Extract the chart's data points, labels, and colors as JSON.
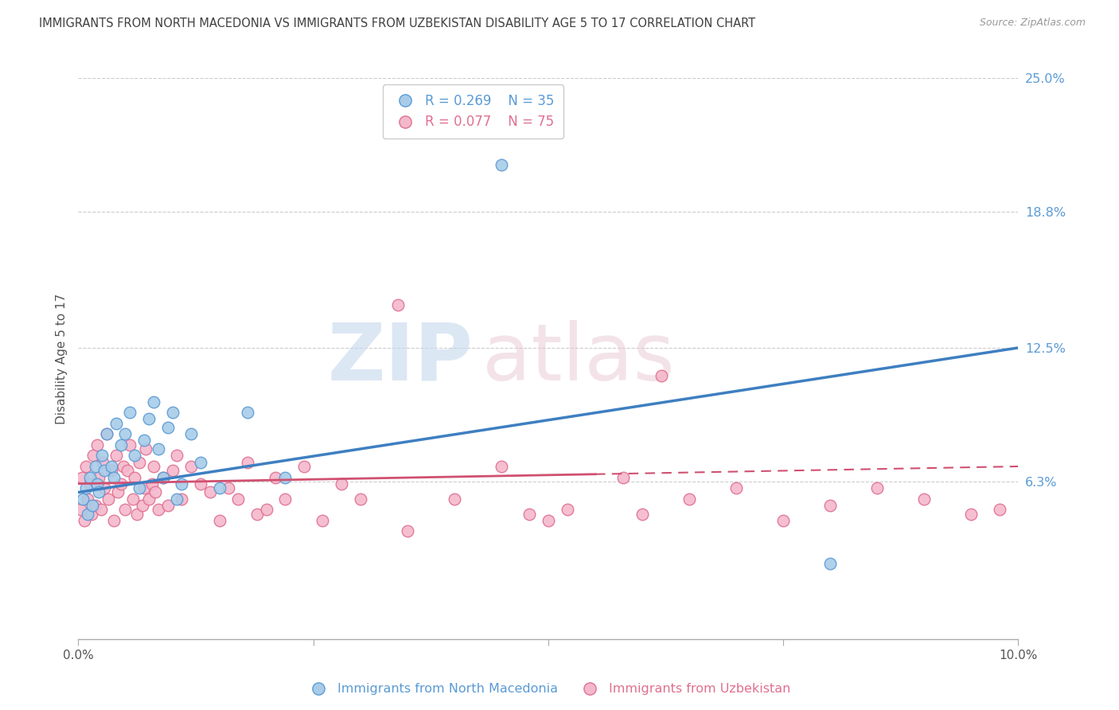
{
  "title": "IMMIGRANTS FROM NORTH MACEDONIA VS IMMIGRANTS FROM UZBEKISTAN DISABILITY AGE 5 TO 17 CORRELATION CHART",
  "source": "Source: ZipAtlas.com",
  "ylabel": "Disability Age 5 to 17",
  "xlim": [
    0.0,
    10.0
  ],
  "ylim": [
    -1.0,
    25.0
  ],
  "ytick_vals": [
    6.3,
    12.5,
    18.8,
    25.0
  ],
  "xtick_vals": [
    0.0,
    2.5,
    5.0,
    7.5,
    10.0
  ],
  "legend_R1": "R = 0.269",
  "legend_N1": "N = 35",
  "legend_R2": "R = 0.077",
  "legend_N2": "N = 75",
  "color_blue_fill": "#a8cce8",
  "color_blue_edge": "#5b9bd5",
  "color_pink_fill": "#f4b8cc",
  "color_pink_edge": "#e07090",
  "color_blue_line": "#3e7fc1",
  "color_pink_line": "#d05070",
  "color_axis_right": "#5b9bd5",
  "blue_x": [
    0.05,
    0.08,
    0.1,
    0.12,
    0.15,
    0.18,
    0.2,
    0.22,
    0.25,
    0.28,
    0.3,
    0.35,
    0.38,
    0.4,
    0.45,
    0.5,
    0.55,
    0.6,
    0.65,
    0.7,
    0.75,
    0.8,
    0.85,
    0.9,
    0.95,
    1.0,
    1.05,
    1.1,
    1.2,
    1.3,
    1.5,
    1.8,
    2.2,
    4.5,
    8.0
  ],
  "blue_y": [
    5.5,
    6.0,
    4.8,
    6.5,
    5.2,
    7.0,
    6.2,
    5.8,
    7.5,
    6.8,
    8.5,
    7.0,
    6.5,
    9.0,
    8.0,
    8.5,
    9.5,
    7.5,
    6.0,
    8.2,
    9.2,
    10.0,
    7.8,
    6.5,
    8.8,
    9.5,
    5.5,
    6.2,
    8.5,
    7.2,
    6.0,
    9.5,
    6.5,
    21.0,
    2.5
  ],
  "pink_x": [
    0.02,
    0.04,
    0.06,
    0.08,
    0.1,
    0.12,
    0.14,
    0.16,
    0.18,
    0.2,
    0.22,
    0.24,
    0.26,
    0.28,
    0.3,
    0.32,
    0.35,
    0.38,
    0.4,
    0.42,
    0.45,
    0.48,
    0.5,
    0.52,
    0.55,
    0.58,
    0.6,
    0.62,
    0.65,
    0.68,
    0.7,
    0.72,
    0.75,
    0.78,
    0.8,
    0.82,
    0.85,
    0.9,
    0.95,
    1.0,
    1.05,
    1.1,
    1.2,
    1.3,
    1.4,
    1.5,
    1.6,
    1.7,
    1.8,
    1.9,
    2.0,
    2.1,
    2.2,
    2.4,
    2.6,
    2.8,
    3.0,
    3.5,
    4.0,
    4.5,
    5.0,
    5.2,
    5.8,
    6.0,
    6.5,
    7.0,
    7.5,
    8.0,
    8.5,
    9.0,
    9.5,
    9.8,
    3.4,
    6.2,
    4.8
  ],
  "pink_y": [
    5.0,
    6.5,
    4.5,
    7.0,
    5.5,
    6.2,
    4.8,
    7.5,
    5.2,
    8.0,
    6.5,
    5.0,
    7.2,
    6.0,
    8.5,
    5.5,
    6.8,
    4.5,
    7.5,
    5.8,
    6.2,
    7.0,
    5.0,
    6.8,
    8.0,
    5.5,
    6.5,
    4.8,
    7.2,
    5.2,
    6.0,
    7.8,
    5.5,
    6.2,
    7.0,
    5.8,
    5.0,
    6.5,
    5.2,
    6.8,
    7.5,
    5.5,
    7.0,
    6.2,
    5.8,
    4.5,
    6.0,
    5.5,
    7.2,
    4.8,
    5.0,
    6.5,
    5.5,
    7.0,
    4.5,
    6.2,
    5.5,
    4.0,
    5.5,
    7.0,
    4.5,
    5.0,
    6.5,
    4.8,
    5.5,
    6.0,
    4.5,
    5.2,
    6.0,
    5.5,
    4.8,
    5.0,
    14.5,
    11.2,
    4.8
  ]
}
